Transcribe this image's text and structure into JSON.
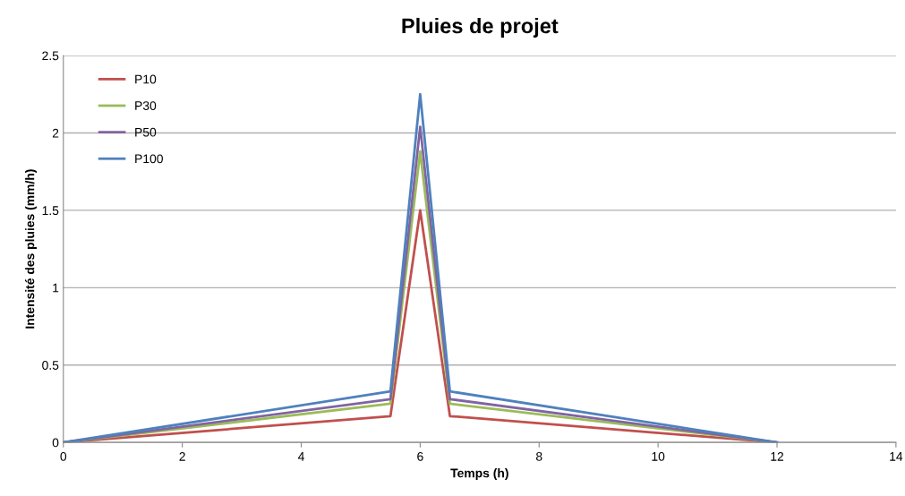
{
  "chart_data": {
    "type": "line",
    "title": "Pluies de projet",
    "xlabel": "Temps (h)",
    "ylabel": "Intensité des pluies (mm/h)",
    "x": [
      0,
      5.5,
      6,
      6.5,
      12
    ],
    "series": [
      {
        "name": "P10",
        "color": "#c0504d",
        "values": [
          0,
          0.17,
          1.5,
          0.17,
          0
        ]
      },
      {
        "name": "P30",
        "color": "#9bbb59",
        "values": [
          0,
          0.25,
          1.88,
          0.25,
          0
        ]
      },
      {
        "name": "P50",
        "color": "#8064a2",
        "values": [
          0,
          0.28,
          2.04,
          0.28,
          0
        ]
      },
      {
        "name": "P100",
        "color": "#4f81bd",
        "values": [
          0,
          0.33,
          2.25,
          0.33,
          0
        ]
      }
    ],
    "xlim": [
      0,
      14
    ],
    "xticks": [
      0,
      2,
      4,
      6,
      8,
      10,
      12,
      14
    ],
    "ylim": [
      0,
      2.5
    ],
    "yticks": [
      0,
      0.5,
      1,
      1.5,
      2,
      2.5
    ],
    "grid": "y",
    "legend": "top left",
    "marker": "none",
    "line_style": "solid"
  }
}
